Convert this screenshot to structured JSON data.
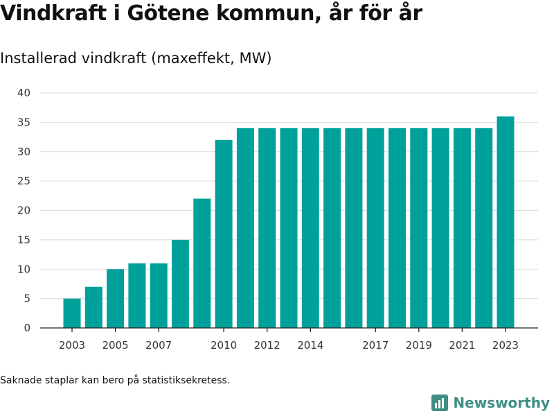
{
  "title": "Vindkraft i Götene kommun, år för år",
  "subtitle": "Installerad vindkraft (maxeffekt, MW)",
  "footnote": "Saknade staplar kan bero på statistiksekretess.",
  "brand": {
    "name": "Newsworthy",
    "color": "#3f8f84"
  },
  "chart_data": {
    "type": "bar",
    "title": "",
    "xlabel": "",
    "ylabel": "",
    "categories": [
      "2003",
      "2004",
      "2005",
      "2006",
      "2007",
      "2008",
      "2009",
      "2010",
      "2011",
      "2012",
      "2013",
      "2014",
      "2015",
      "2016",
      "2017",
      "2018",
      "2019",
      "2020",
      "2021",
      "2022",
      "2023"
    ],
    "values": [
      5,
      7,
      10,
      11,
      11,
      15,
      22,
      32,
      34,
      34,
      34,
      34,
      34,
      34,
      34,
      34,
      34,
      34,
      34,
      34,
      36
    ],
    "x_tick_labels": [
      "2003",
      "2005",
      "2007",
      "2010",
      "2012",
      "2014",
      "2017",
      "2019",
      "2021",
      "2023"
    ],
    "y_ticks": [
      0,
      5,
      10,
      15,
      20,
      25,
      30,
      35,
      40
    ],
    "ylim": [
      0,
      40
    ],
    "grid": true,
    "bar_color": "#00a19a"
  }
}
